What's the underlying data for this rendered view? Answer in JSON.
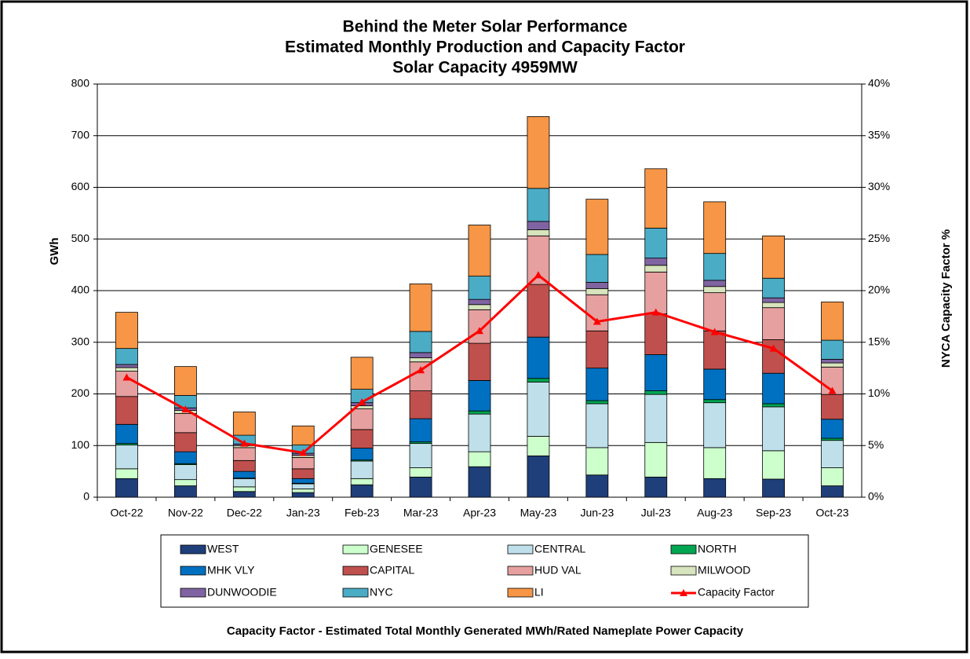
{
  "chart_data": {
    "type": "bar",
    "stacked": true,
    "title": [
      "Behind the Meter Solar Performance",
      "Estimated Monthly Production and Capacity Factor",
      "Solar Capacity 4959MW"
    ],
    "ylabel": "GWh",
    "y2label": "NYCA  Capacity  Factor %",
    "note": "Capacity Factor  - Estimated Total  Monthly Generated MWh/Rated Nameplate Power Capacity",
    "categories": [
      "Oct-22",
      "Nov-22",
      "Dec-22",
      "Jan-23",
      "Feb-23",
      "Mar-23",
      "Apr-23",
      "May-23",
      "Jun-23",
      "Jul-23",
      "Aug-23",
      "Sep-23",
      "Oct-23"
    ],
    "series": [
      {
        "name": "WEST",
        "color": "#1f3f7a",
        "values": [
          36,
          22,
          11,
          9,
          24,
          39,
          59,
          80,
          43,
          39,
          36,
          35,
          22
        ]
      },
      {
        "name": "GENESEE",
        "color": "#ccffcc",
        "values": [
          19,
          12,
          9,
          7,
          12,
          18,
          29,
          38,
          53,
          67,
          60,
          55,
          35
        ]
      },
      {
        "name": "CENTRAL",
        "color": "#bfe0ea",
        "values": [
          46,
          29,
          16,
          10,
          34,
          47,
          73,
          105,
          85,
          93,
          87,
          85,
          53
        ]
      },
      {
        "name": "NORTH",
        "color": "#00a651",
        "values": [
          3,
          2,
          1,
          1,
          2,
          3,
          6,
          7,
          6,
          7,
          6,
          6,
          4
        ]
      },
      {
        "name": "MHK VLY",
        "color": "#0070c0",
        "values": [
          37,
          23,
          13,
          9,
          23,
          45,
          59,
          80,
          63,
          70,
          59,
          59,
          37
        ]
      },
      {
        "name": "CAPITAL",
        "color": "#c0504d",
        "values": [
          54,
          37,
          21,
          19,
          36,
          54,
          72,
          102,
          72,
          79,
          74,
          65,
          48
        ]
      },
      {
        "name": "HUD VAL",
        "color": "#e6a0a0",
        "values": [
          49,
          37,
          25,
          22,
          40,
          56,
          65,
          94,
          70,
          81,
          74,
          62,
          53
        ]
      },
      {
        "name": "MILWOOD",
        "color": "#d7e4bd",
        "values": [
          7,
          6,
          4,
          4,
          6,
          8,
          10,
          12,
          12,
          13,
          12,
          10,
          8
        ]
      },
      {
        "name": "DUNWOODIE",
        "color": "#8064a2",
        "values": [
          6,
          5,
          3,
          4,
          6,
          10,
          10,
          16,
          12,
          14,
          12,
          9,
          7
        ]
      },
      {
        "name": "NYC",
        "color": "#4bacc6",
        "values": [
          31,
          24,
          17,
          16,
          26,
          41,
          45,
          64,
          54,
          58,
          52,
          38,
          37
        ]
      },
      {
        "name": "LI",
        "color": "#f79646",
        "values": [
          70,
          56,
          45,
          37,
          62,
          92,
          99,
          139,
          107,
          115,
          100,
          82,
          74
        ]
      },
      {
        "name": "Capacity Factor",
        "color": "#ff0000",
        "axis": "y2",
        "type": "line",
        "values": [
          11.6,
          8.5,
          5.2,
          4.3,
          9.2,
          12.3,
          16.1,
          21.5,
          17.0,
          17.9,
          16.0,
          14.4,
          10.3
        ]
      }
    ],
    "ylim": [
      0,
      800
    ],
    "yticks": [
      0,
      100,
      200,
      300,
      400,
      500,
      600,
      700,
      800
    ],
    "y2lim": [
      0,
      40
    ],
    "y2ticks": [
      {
        "value": 0,
        "label": "0%"
      },
      {
        "value": 5,
        "label": "5%"
      },
      {
        "value": 10,
        "label": "10%"
      },
      {
        "value": 15,
        "label": "15%"
      },
      {
        "value": 20,
        "label": "20%"
      },
      {
        "value": 25,
        "label": "25%"
      },
      {
        "value": 30,
        "label": "30%"
      },
      {
        "value": 35,
        "label": "35%"
      },
      {
        "value": 40,
        "label": "40%"
      }
    ],
    "grid": true
  }
}
